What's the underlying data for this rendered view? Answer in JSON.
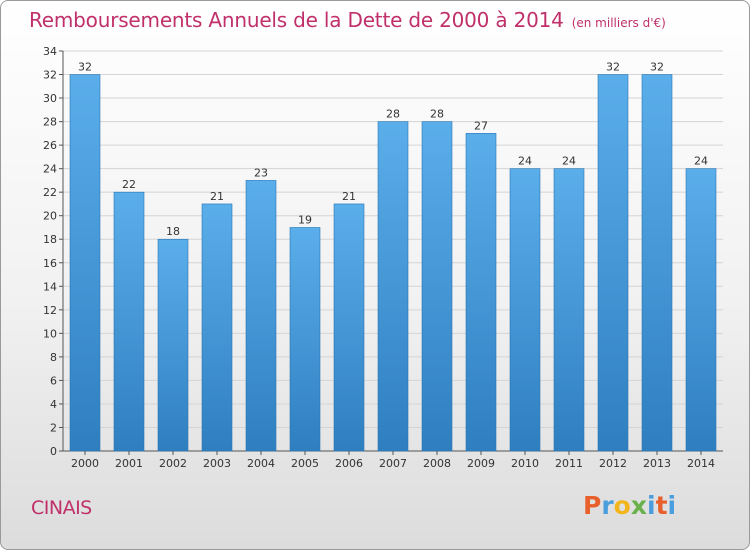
{
  "chart_data": {
    "type": "bar",
    "title": "Remboursements Annuels de la Dette de 2000 à 2014",
    "subtitle": "(en milliers d'€)",
    "categories": [
      "2000",
      "2001",
      "2002",
      "2003",
      "2004",
      "2005",
      "2006",
      "2007",
      "2008",
      "2009",
      "2010",
      "2011",
      "2012",
      "2013",
      "2014"
    ],
    "values": [
      32,
      22,
      18,
      21,
      23,
      19,
      21,
      28,
      28,
      27,
      24,
      24,
      32,
      32,
      24
    ],
    "ylim": [
      0,
      34
    ],
    "yticks": [
      0,
      2,
      4,
      6,
      8,
      10,
      12,
      14,
      16,
      18,
      20,
      22,
      24,
      26,
      28,
      30,
      32,
      34
    ],
    "grid": true,
    "bar_color": "#4a9ede"
  },
  "footer": {
    "town": "CINAIS",
    "logo": "Proxiti"
  },
  "colors": {
    "title": "#c0306a",
    "logo": [
      "#e8612c",
      "#4a9ede",
      "#f2b61c",
      "#6ab04c",
      "#4a9ede",
      "#e8612c",
      "#4a9ede"
    ]
  }
}
